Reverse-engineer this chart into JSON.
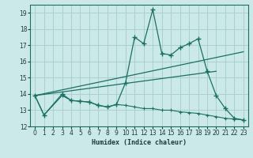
{
  "xlabel": "Humidex (Indice chaleur)",
  "bg_color": "#cce9e9",
  "grid_color": "#aad0d0",
  "line_color": "#1a7060",
  "spine_color": "#1a7060",
  "tick_color": "#1a3a3a",
  "xlim": [
    -0.5,
    23.5
  ],
  "ylim": [
    12,
    19.5
  ],
  "yticks": [
    12,
    13,
    14,
    15,
    16,
    17,
    18,
    19
  ],
  "xticks": [
    0,
    1,
    2,
    3,
    4,
    5,
    6,
    7,
    8,
    9,
    10,
    11,
    12,
    13,
    14,
    15,
    16,
    17,
    18,
    19,
    20,
    21,
    22,
    23
  ],
  "main_x": [
    0,
    1,
    3,
    4,
    5,
    6,
    7,
    8,
    9,
    10,
    11,
    12,
    13,
    14,
    15,
    16,
    17,
    18,
    19,
    20,
    21,
    22,
    23
  ],
  "main_y": [
    13.9,
    12.7,
    14.0,
    13.6,
    13.55,
    13.5,
    13.3,
    13.2,
    13.35,
    14.7,
    17.5,
    17.1,
    19.2,
    16.5,
    16.4,
    16.85,
    17.1,
    17.4,
    15.4,
    13.9,
    13.1,
    12.5,
    12.4
  ],
  "lower_x": [
    0,
    1,
    3,
    4,
    5,
    6,
    7,
    8,
    9,
    10,
    11,
    12,
    13,
    14,
    15,
    16,
    17,
    18,
    19,
    20,
    21,
    22,
    23
  ],
  "lower_y": [
    13.9,
    12.7,
    13.9,
    13.6,
    13.55,
    13.5,
    13.3,
    13.2,
    13.35,
    13.3,
    13.2,
    13.1,
    13.1,
    13.0,
    13.0,
    12.9,
    12.85,
    12.8,
    12.7,
    12.6,
    12.5,
    12.45,
    12.4
  ],
  "upper_line_x": [
    0,
    23
  ],
  "upper_line_y": [
    13.9,
    16.6
  ],
  "lower_line_x": [
    0,
    20
  ],
  "lower_line_y": [
    13.9,
    15.4
  ]
}
